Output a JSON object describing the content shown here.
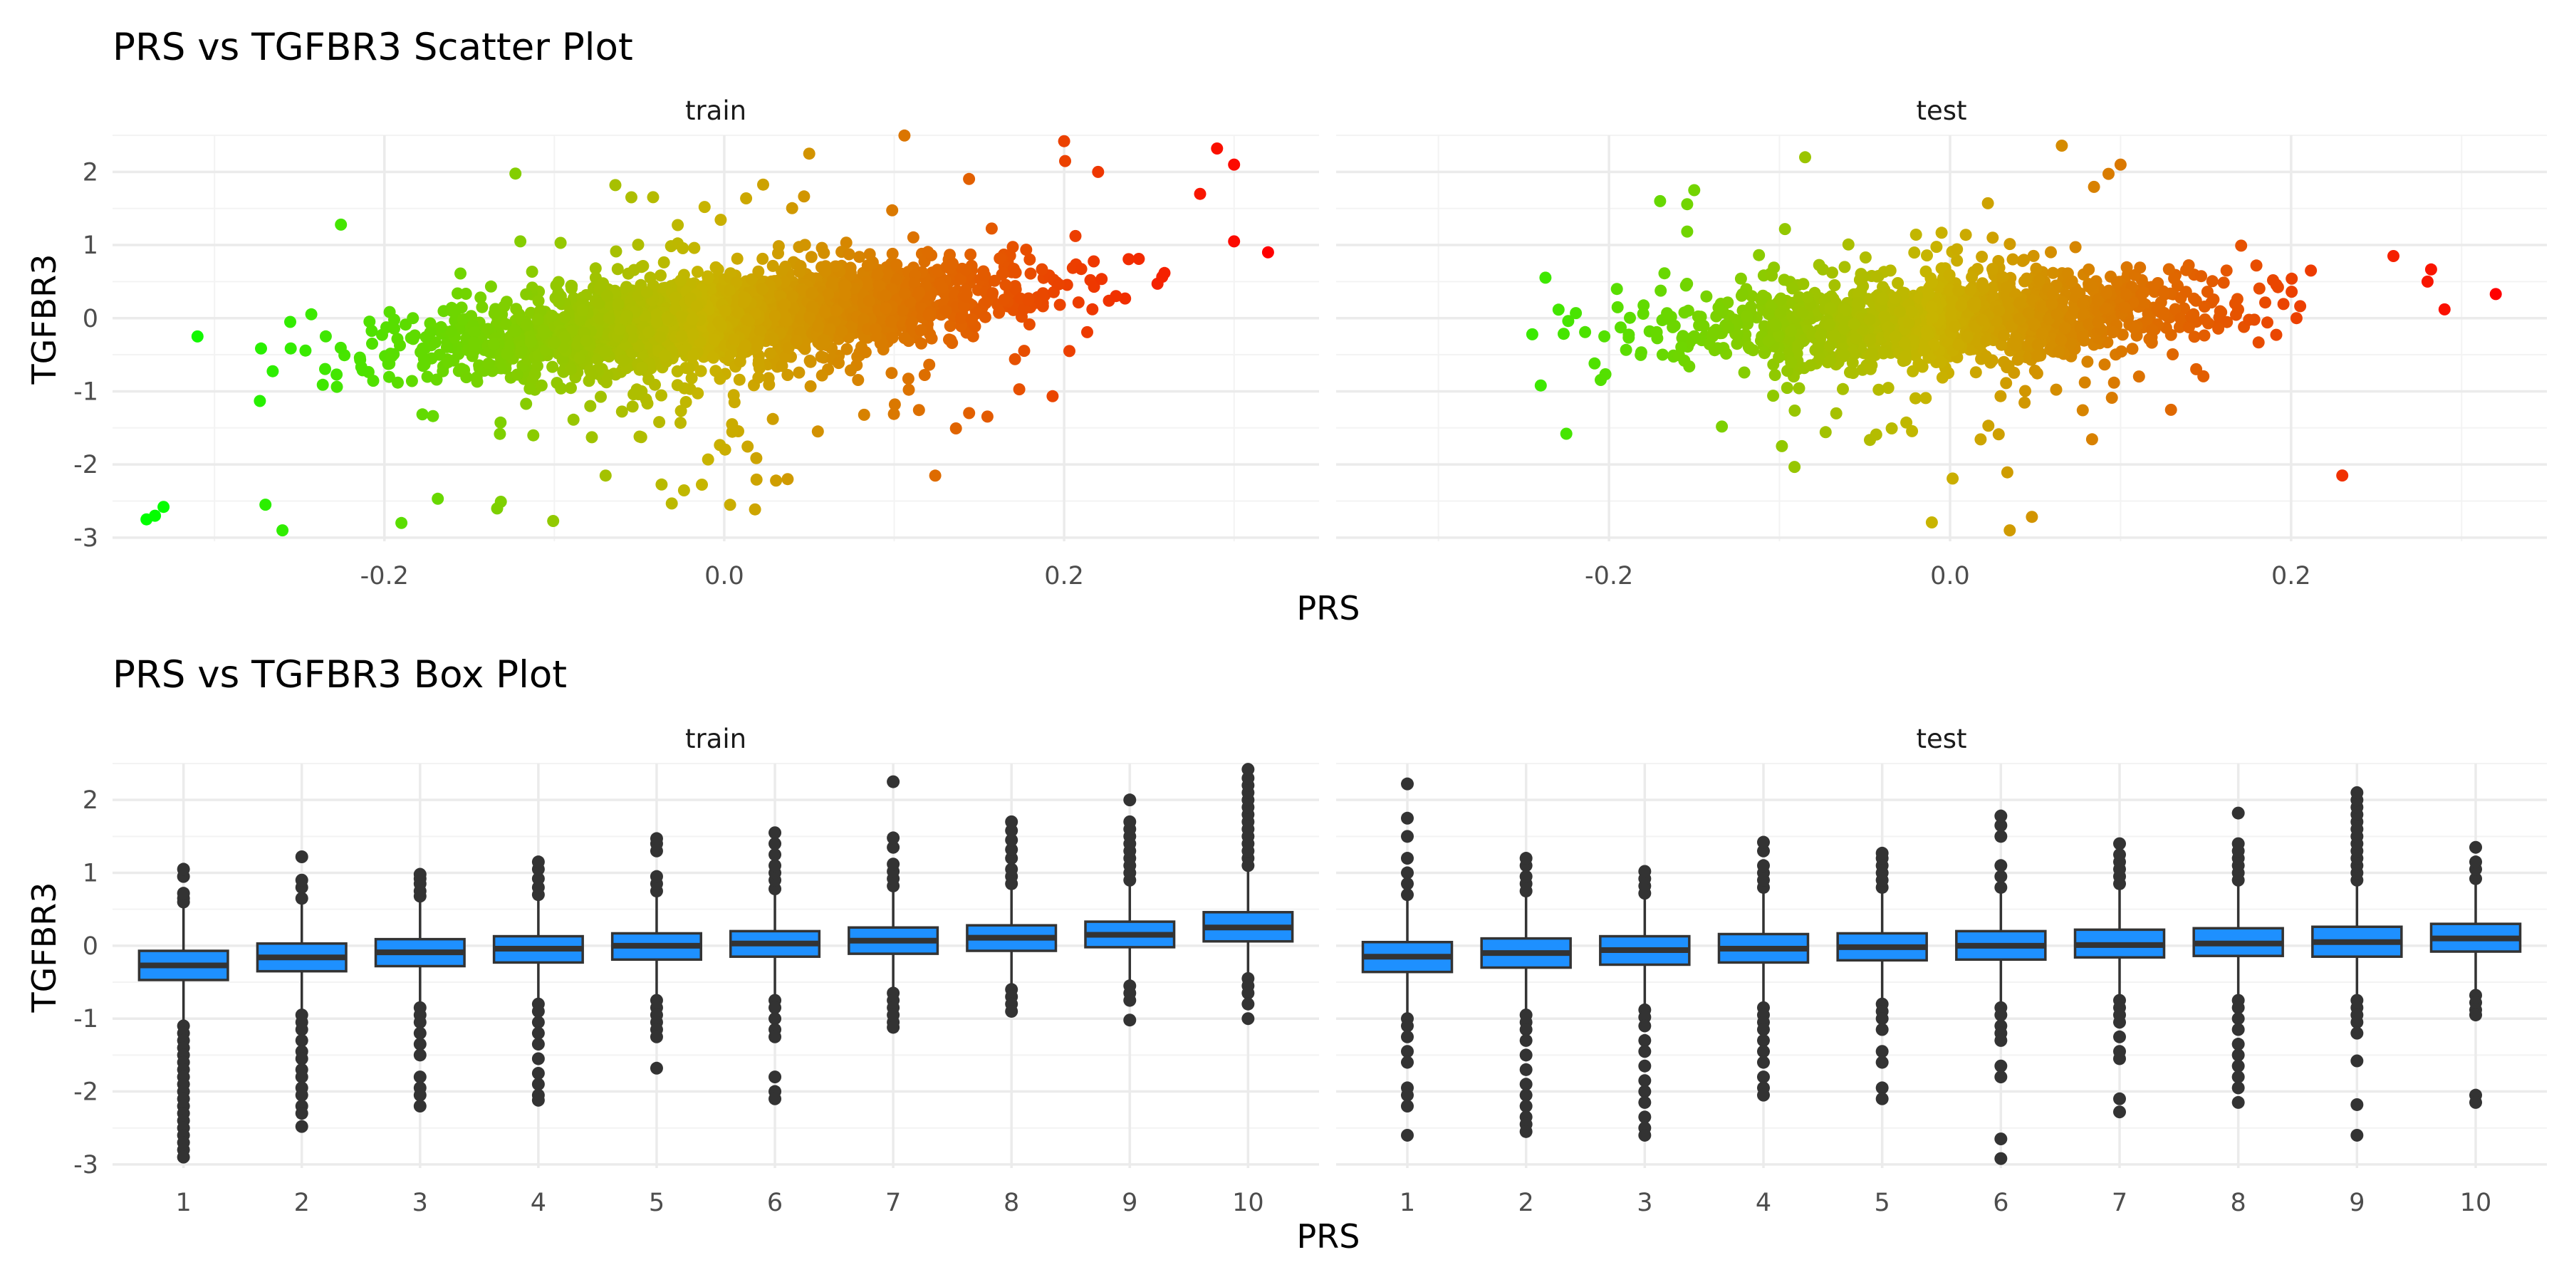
{
  "colors": {
    "low": "#00ff00",
    "mid": "#c8b400",
    "high": "#ff0000",
    "box_fill": "#1e90ff",
    "box_line": "#333333",
    "grid": "#ebebeb"
  },
  "chart_data": [
    {
      "type": "scatter",
      "title": "PRS vs TGFBR3 Scatter Plot",
      "xlabel": "PRS",
      "ylabel": "TGFBR3",
      "color_by": "PRS",
      "grid": true,
      "legend": "none",
      "xticks": [
        -0.2,
        0.0,
        0.2
      ],
      "xtick_labels": [
        "-0.2",
        "0.0",
        "0.2"
      ],
      "yticks": [
        2,
        1,
        0,
        -1,
        -2,
        -3
      ],
      "ytick_labels": [
        "2",
        "1",
        "0",
        "-1",
        "-2",
        "-3"
      ],
      "xlim": [
        -0.36,
        0.35
      ],
      "ylim": [
        -3.05,
        2.5
      ],
      "panels": [
        {
          "name": "train",
          "slope": 2.0,
          "noise_sd": 0.37,
          "x_sd": 0.085,
          "n_points": 2600,
          "extremes": [
            {
              "x": -0.34,
              "y": -2.75
            },
            {
              "x": -0.335,
              "y": -2.7
            },
            {
              "x": -0.33,
              "y": -2.58
            },
            {
              "x": -0.31,
              "y": -0.25
            },
            {
              "x": -0.27,
              "y": -2.55
            },
            {
              "x": -0.26,
              "y": -2.9
            },
            {
              "x": -0.19,
              "y": -2.8
            },
            {
              "x": -0.12,
              "y": 1.05
            },
            {
              "x": 0.05,
              "y": 2.25
            },
            {
              "x": 0.2,
              "y": 2.42
            },
            {
              "x": 0.22,
              "y": 2.0
            },
            {
              "x": 0.29,
              "y": 2.32
            },
            {
              "x": 0.3,
              "y": 2.1
            },
            {
              "x": 0.32,
              "y": 0.9
            },
            {
              "x": 0.28,
              "y": 1.7
            },
            {
              "x": 0.3,
              "y": 1.05
            }
          ]
        },
        {
          "name": "test",
          "slope": 0.95,
          "noise_sd": 0.4,
          "x_sd": 0.08,
          "n_points": 1400,
          "extremes": [
            {
              "x": -0.245,
              "y": -0.22
            },
            {
              "x": -0.24,
              "y": -0.92
            },
            {
              "x": -0.225,
              "y": -1.58
            },
            {
              "x": -0.17,
              "y": 1.6
            },
            {
              "x": -0.15,
              "y": 1.75
            },
            {
              "x": -0.085,
              "y": 2.2
            },
            {
              "x": 0.1,
              "y": 2.1
            },
            {
              "x": 0.035,
              "y": -2.9
            },
            {
              "x": 0.23,
              "y": -2.15
            },
            {
              "x": 0.32,
              "y": 0.33
            },
            {
              "x": 0.28,
              "y": 0.5
            },
            {
              "x": 0.29,
              "y": 0.12
            },
            {
              "x": 0.26,
              "y": 0.85
            }
          ]
        }
      ]
    },
    {
      "type": "box",
      "title": "PRS vs TGFBR3 Box Plot",
      "xlabel": "PRS",
      "ylabel": "TGFBR3",
      "grid": true,
      "legend": "none",
      "categories": [
        "1",
        "2",
        "3",
        "4",
        "5",
        "6",
        "7",
        "8",
        "9",
        "10"
      ],
      "yticks": [
        2,
        1,
        0,
        -1,
        -2,
        -3
      ],
      "ytick_labels": [
        "2",
        "1",
        "0",
        "-1",
        "-2",
        "-3"
      ],
      "ylim": [
        -3.05,
        2.5
      ],
      "panels": [
        {
          "name": "train",
          "boxes": [
            {
              "q1": -0.47,
              "median": -0.27,
              "q3": -0.07,
              "whisker_low": -1.08,
              "whisker_high": 0.55,
              "outliers": [
                0.6,
                0.65,
                0.72,
                0.95,
                1.05,
                -1.1,
                -1.2,
                -1.3,
                -1.4,
                -1.5,
                -1.6,
                -1.7,
                -1.8,
                -1.9,
                -2.0,
                -2.1,
                -2.2,
                -2.3,
                -2.4,
                -2.5,
                -2.6,
                -2.7,
                -2.8,
                -2.9
              ]
            },
            {
              "q1": -0.35,
              "median": -0.16,
              "q3": 0.03,
              "whisker_low": -0.9,
              "whisker_high": 0.6,
              "outliers": [
                0.65,
                0.8,
                0.9,
                1.22,
                -0.95,
                -1.05,
                -1.15,
                -1.3,
                -1.45,
                -1.55,
                -1.7,
                -1.8,
                -1.95,
                -2.05,
                -2.2,
                -2.3,
                -2.48
              ]
            },
            {
              "q1": -0.28,
              "median": -0.09,
              "q3": 0.09,
              "whisker_low": -0.82,
              "whisker_high": 0.62,
              "outliers": [
                0.68,
                0.75,
                0.85,
                0.92,
                0.98,
                -0.85,
                -0.95,
                -1.05,
                -1.2,
                -1.35,
                -1.5,
                -1.8,
                -1.95,
                -2.05,
                -2.2
              ]
            },
            {
              "q1": -0.23,
              "median": -0.04,
              "q3": 0.13,
              "whisker_low": -0.77,
              "whisker_high": 0.66,
              "outliers": [
                0.7,
                0.8,
                0.92,
                1.05,
                1.15,
                -0.8,
                -0.9,
                -1.05,
                -1.2,
                -1.35,
                -1.55,
                -1.75,
                -1.9,
                -2.05,
                -2.12
              ]
            },
            {
              "q1": -0.19,
              "median": 0.0,
              "q3": 0.17,
              "whisker_low": -0.7,
              "whisker_high": 0.7,
              "outliers": [
                0.75,
                0.85,
                0.95,
                1.3,
                1.4,
                1.47,
                -0.75,
                -0.85,
                -0.95,
                -1.05,
                -1.15,
                -1.25,
                -1.68
              ]
            },
            {
              "q1": -0.15,
              "median": 0.03,
              "q3": 0.2,
              "whisker_low": -0.68,
              "whisker_high": 0.72,
              "outliers": [
                0.78,
                0.9,
                1.0,
                1.1,
                1.25,
                1.4,
                1.55,
                -0.75,
                -0.85,
                -1.0,
                -1.15,
                -1.25,
                -1.8,
                -2.0,
                -2.1
              ]
            },
            {
              "q1": -0.11,
              "median": 0.07,
              "q3": 0.25,
              "whisker_low": -0.6,
              "whisker_high": 0.78,
              "outliers": [
                0.82,
                0.92,
                1.02,
                1.12,
                1.35,
                1.48,
                2.25,
                -0.65,
                -0.75,
                -0.85,
                -0.95,
                -1.05,
                -1.12
              ]
            },
            {
              "q1": -0.07,
              "median": 0.11,
              "q3": 0.28,
              "whisker_low": -0.55,
              "whisker_high": 0.8,
              "outliers": [
                0.85,
                0.95,
                1.05,
                1.2,
                1.32,
                1.45,
                1.58,
                1.7,
                -0.6,
                -0.7,
                -0.8,
                -0.9
              ]
            },
            {
              "q1": -0.02,
              "median": 0.15,
              "q3": 0.33,
              "whisker_low": -0.48,
              "whisker_high": 0.85,
              "outliers": [
                0.9,
                1.0,
                1.1,
                1.2,
                1.3,
                1.4,
                1.5,
                1.6,
                1.7,
                2.0,
                -0.55,
                -0.65,
                -0.75,
                -1.02
              ]
            },
            {
              "q1": 0.06,
              "median": 0.25,
              "q3": 0.46,
              "whisker_low": -0.4,
              "whisker_high": 1.05,
              "outliers": [
                1.1,
                1.2,
                1.3,
                1.4,
                1.5,
                1.6,
                1.7,
                1.8,
                1.9,
                2.0,
                2.1,
                2.2,
                2.3,
                2.42,
                -0.45,
                -0.55,
                -0.65,
                -0.8,
                -1.0
              ]
            }
          ]
        },
        {
          "name": "test",
          "boxes": [
            {
              "q1": -0.36,
              "median": -0.15,
              "q3": 0.05,
              "whisker_low": -0.95,
              "whisker_high": 0.65,
              "outliers": [
                0.7,
                0.85,
                1.0,
                1.2,
                1.5,
                1.75,
                2.22,
                -1.0,
                -1.1,
                -1.25,
                -1.45,
                -1.6,
                -1.95,
                -2.05,
                -2.2,
                -2.6
              ]
            },
            {
              "q1": -0.3,
              "median": -0.1,
              "q3": 0.1,
              "whisker_low": -0.9,
              "whisker_high": 0.68,
              "outliers": [
                0.75,
                0.85,
                0.95,
                1.1,
                1.2,
                -0.95,
                -1.05,
                -1.15,
                -1.3,
                -1.5,
                -1.7,
                -1.9,
                -2.05,
                -2.2,
                -2.35,
                -2.45,
                -2.55
              ]
            },
            {
              "q1": -0.26,
              "median": -0.06,
              "q3": 0.13,
              "whisker_low": -0.82,
              "whisker_high": 0.66,
              "outliers": [
                0.72,
                0.82,
                0.92,
                1.02,
                -0.88,
                -0.98,
                -1.1,
                -1.3,
                -1.45,
                -1.65,
                -1.85,
                -2.0,
                -2.15,
                -2.35,
                -2.5,
                -2.6
              ]
            },
            {
              "q1": -0.23,
              "median": -0.04,
              "q3": 0.16,
              "whisker_low": -0.8,
              "whisker_high": 0.72,
              "outliers": [
                0.8,
                0.9,
                1.0,
                1.1,
                1.3,
                1.42,
                -0.85,
                -0.95,
                -1.05,
                -1.15,
                -1.3,
                -1.45,
                -1.6,
                -1.8,
                -1.95,
                -2.05
              ]
            },
            {
              "q1": -0.2,
              "median": -0.02,
              "q3": 0.17,
              "whisker_low": -0.75,
              "whisker_high": 0.72,
              "outliers": [
                0.8,
                0.9,
                1.0,
                1.1,
                1.2,
                1.27,
                -0.8,
                -0.9,
                -1.0,
                -1.15,
                -1.45,
                -1.6,
                -1.95,
                -2.1
              ]
            },
            {
              "q1": -0.19,
              "median": 0.0,
              "q3": 0.2,
              "whisker_low": -0.78,
              "whisker_high": 0.75,
              "outliers": [
                0.8,
                0.95,
                1.1,
                1.5,
                1.65,
                1.78,
                -0.85,
                -0.95,
                -1.1,
                -1.2,
                -1.3,
                -1.65,
                -1.8,
                -2.65,
                -2.92
              ]
            },
            {
              "q1": -0.16,
              "median": 0.01,
              "q3": 0.22,
              "whisker_low": -0.7,
              "whisker_high": 0.78,
              "outliers": [
                0.85,
                0.95,
                1.05,
                1.15,
                1.25,
                1.4,
                -0.75,
                -0.85,
                -0.95,
                -1.05,
                -1.25,
                -1.45,
                -1.55,
                -2.1,
                -2.28
              ]
            },
            {
              "q1": -0.14,
              "median": 0.03,
              "q3": 0.24,
              "whisker_low": -0.68,
              "whisker_high": 0.82,
              "outliers": [
                0.9,
                1.0,
                1.1,
                1.2,
                1.3,
                1.4,
                1.82,
                -0.75,
                -0.85,
                -1.0,
                -1.15,
                -1.35,
                -1.5,
                -1.65,
                -1.8,
                -1.95,
                -2.15
              ]
            },
            {
              "q1": -0.15,
              "median": 0.05,
              "q3": 0.26,
              "whisker_low": -0.7,
              "whisker_high": 0.85,
              "outliers": [
                0.9,
                1.0,
                1.1,
                1.2,
                1.3,
                1.4,
                1.5,
                1.6,
                1.7,
                1.8,
                1.9,
                2.0,
                2.1,
                -0.75,
                -0.85,
                -0.95,
                -1.05,
                -1.2,
                -1.58,
                -2.18,
                -2.6
              ]
            },
            {
              "q1": -0.08,
              "median": 0.1,
              "q3": 0.3,
              "whisker_low": -0.62,
              "whisker_high": 0.88,
              "outliers": [
                0.92,
                1.05,
                1.15,
                1.35,
                -0.68,
                -0.78,
                -0.88,
                -0.95,
                -2.05,
                -2.15
              ]
            }
          ]
        }
      ]
    }
  ]
}
